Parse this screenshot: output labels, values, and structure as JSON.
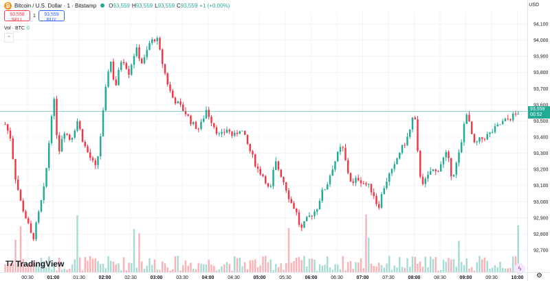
{
  "header": {
    "symbol_title": "Bitcoin / U.S. Dollar · 1 · Bitstamp",
    "ohlc": [
      {
        "key": "O",
        "value": "93,559"
      },
      {
        "key": "H",
        "value": "93,559"
      },
      {
        "key": "L",
        "value": "93,559"
      },
      {
        "key": "C",
        "value": "93,559"
      }
    ],
    "change": "+1 (+0.00%)"
  },
  "trade": {
    "sell_price": "93,558",
    "sell_label": "SELL",
    "spread": "1",
    "buy_price": "93,559",
    "buy_label": "BUY"
  },
  "volume_indicator": {
    "label": "Vol · BTC",
    "value": "0"
  },
  "price_axis": {
    "currency": "USD"
  },
  "current_price": {
    "price": "93,559",
    "countdown": "00:52"
  },
  "branding": {
    "logo_text": "TradingView"
  },
  "colors": {
    "up": "#22ab94",
    "down": "#f23645",
    "vol_up": "#a6dcd3",
    "vol_down": "#f9b2b7",
    "grid": "#f2f3f5"
  },
  "icons": {
    "collapse": "chevron-up-icon",
    "goto_realtime": "lightning-icon",
    "settings": "gear-icon"
  },
  "chart_data": {
    "type": "candlestick",
    "ylim": [
      92600,
      94150
    ],
    "y_ticks": [
      {
        "value": 92700,
        "label": "92,700"
      },
      {
        "value": 92800,
        "label": "92,800"
      },
      {
        "value": 92900,
        "label": "92,900"
      },
      {
        "value": 93000,
        "label": "93,000"
      },
      {
        "value": 93100,
        "label": "93,100"
      },
      {
        "value": 93200,
        "label": "93,200"
      },
      {
        "value": 93300,
        "label": "93,300"
      },
      {
        "value": 93400,
        "label": "93,400"
      },
      {
        "value": 93500,
        "label": "93,500"
      },
      {
        "value": 93600,
        "label": "93,600"
      },
      {
        "value": 93700,
        "label": "93,700"
      },
      {
        "value": 93800,
        "label": "93,800"
      },
      {
        "value": 93900,
        "label": "93,900"
      },
      {
        "value": 94000,
        "label": "94,000"
      },
      {
        "value": 94100,
        "label": "94,100"
      }
    ],
    "x_ticks": [
      "00:30",
      "01:00",
      "01:30",
      "02:00",
      "02:30",
      "03:00",
      "03:30",
      "04:00",
      "04:30",
      "05:00",
      "05:30",
      "06:00",
      "06:30",
      "07:00",
      "07:30",
      "08:00",
      "08:30",
      "09:00",
      "09:30",
      "10:00"
    ],
    "bold_x_ticks": [
      "01:00",
      "02:00",
      "03:00",
      "04:00",
      "05:00",
      "06:00",
      "07:00",
      "08:00",
      "09:00",
      "10:00"
    ],
    "x_start": "00:04",
    "interval_minutes": 3,
    "close_anchors": [
      {
        "time": "00:04",
        "close": 93480
      },
      {
        "time": "00:10",
        "close": 93400
      },
      {
        "time": "00:16",
        "close": 93150
      },
      {
        "time": "00:22",
        "close": 93000
      },
      {
        "time": "00:30",
        "close": 92870
      },
      {
        "time": "00:36",
        "close": 92760
      },
      {
        "time": "00:42",
        "close": 92900
      },
      {
        "time": "00:50",
        "close": 93100
      },
      {
        "time": "00:56",
        "close": 93420
      },
      {
        "time": "01:00",
        "close": 93680
      },
      {
        "time": "01:06",
        "close": 93300
      },
      {
        "time": "01:12",
        "close": 93450
      },
      {
        "time": "01:20",
        "close": 93380
      },
      {
        "time": "01:28",
        "close": 93500
      },
      {
        "time": "01:36",
        "close": 93350
      },
      {
        "time": "01:44",
        "close": 93260
      },
      {
        "time": "01:50",
        "close": 93200
      },
      {
        "time": "01:56",
        "close": 93450
      },
      {
        "time": "02:00",
        "close": 93650
      },
      {
        "time": "02:06",
        "close": 93900
      },
      {
        "time": "02:12",
        "close": 93700
      },
      {
        "time": "02:20",
        "close": 93900
      },
      {
        "time": "02:28",
        "close": 93800
      },
      {
        "time": "02:36",
        "close": 93950
      },
      {
        "time": "02:44",
        "close": 93850
      },
      {
        "time": "02:52",
        "close": 93980
      },
      {
        "time": "03:00",
        "close": 94020
      },
      {
        "time": "03:06",
        "close": 93880
      },
      {
        "time": "03:12",
        "close": 93750
      },
      {
        "time": "03:18",
        "close": 93650
      },
      {
        "time": "03:26",
        "close": 93600
      },
      {
        "time": "03:34",
        "close": 93550
      },
      {
        "time": "03:42",
        "close": 93480
      },
      {
        "time": "03:50",
        "close": 93450
      },
      {
        "time": "03:58",
        "close": 93570
      },
      {
        "time": "04:06",
        "close": 93480
      },
      {
        "time": "04:14",
        "close": 93400
      },
      {
        "time": "04:22",
        "close": 93450
      },
      {
        "time": "04:30",
        "close": 93400
      },
      {
        "time": "04:38",
        "close": 93460
      },
      {
        "time": "04:44",
        "close": 93380
      },
      {
        "time": "04:50",
        "close": 93300
      },
      {
        "time": "04:58",
        "close": 93200
      },
      {
        "time": "05:06",
        "close": 93150
      },
      {
        "time": "05:12",
        "close": 93050
      },
      {
        "time": "05:18",
        "close": 93250
      },
      {
        "time": "05:24",
        "close": 93180
      },
      {
        "time": "05:30",
        "close": 93100
      },
      {
        "time": "05:36",
        "close": 93000
      },
      {
        "time": "05:42",
        "close": 92950
      },
      {
        "time": "05:48",
        "close": 92820
      },
      {
        "time": "05:54",
        "close": 92880
      },
      {
        "time": "06:00",
        "close": 92920
      },
      {
        "time": "06:06",
        "close": 92950
      },
      {
        "time": "06:12",
        "close": 93050
      },
      {
        "time": "06:18",
        "close": 93100
      },
      {
        "time": "06:24",
        "close": 93200
      },
      {
        "time": "06:30",
        "close": 93280
      },
      {
        "time": "06:36",
        "close": 93350
      },
      {
        "time": "06:42",
        "close": 93200
      },
      {
        "time": "06:48",
        "close": 93100
      },
      {
        "time": "06:54",
        "close": 93150
      },
      {
        "time": "07:00",
        "close": 93120
      },
      {
        "time": "07:06",
        "close": 93100
      },
      {
        "time": "07:12",
        "close": 93060
      },
      {
        "time": "07:18",
        "close": 92960
      },
      {
        "time": "07:24",
        "close": 93080
      },
      {
        "time": "07:30",
        "close": 93160
      },
      {
        "time": "07:36",
        "close": 93200
      },
      {
        "time": "07:42",
        "close": 93300
      },
      {
        "time": "07:48",
        "close": 93350
      },
      {
        "time": "07:54",
        "close": 93420
      },
      {
        "time": "08:00",
        "close": 93560
      },
      {
        "time": "08:04",
        "close": 93300
      },
      {
        "time": "08:08",
        "close": 93120
      },
      {
        "time": "08:14",
        "close": 93130
      },
      {
        "time": "08:20",
        "close": 93200
      },
      {
        "time": "08:26",
        "close": 93180
      },
      {
        "time": "08:32",
        "close": 93250
      },
      {
        "time": "08:38",
        "close": 93300
      },
      {
        "time": "08:44",
        "close": 93150
      },
      {
        "time": "08:50",
        "close": 93250
      },
      {
        "time": "08:56",
        "close": 93380
      },
      {
        "time": "09:00",
        "close": 93580
      },
      {
        "time": "09:04",
        "close": 93480
      },
      {
        "time": "09:10",
        "close": 93350
      },
      {
        "time": "09:16",
        "close": 93380
      },
      {
        "time": "09:22",
        "close": 93400
      },
      {
        "time": "09:28",
        "close": 93420
      },
      {
        "time": "09:34",
        "close": 93450
      },
      {
        "time": "09:40",
        "close": 93480
      },
      {
        "time": "09:46",
        "close": 93500
      },
      {
        "time": "09:52",
        "close": 93520
      },
      {
        "time": "09:58",
        "close": 93540
      },
      {
        "time": "10:02",
        "close": 93559
      }
    ]
  }
}
